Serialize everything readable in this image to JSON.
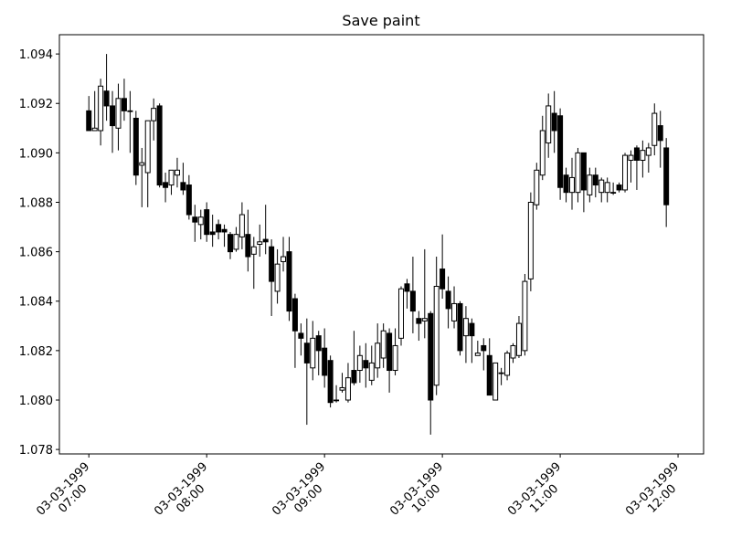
{
  "chart_data": {
    "type": "candlestick",
    "title": "Save paint",
    "x": [
      "1999-03-03 07:00",
      "1999-03-03 07:03",
      "1999-03-03 07:06",
      "1999-03-03 07:09",
      "1999-03-03 07:12",
      "1999-03-03 07:15",
      "1999-03-03 07:18",
      "1999-03-03 07:21",
      "1999-03-03 07:24",
      "1999-03-03 07:27",
      "1999-03-03 07:30",
      "1999-03-03 07:33",
      "1999-03-03 07:36",
      "1999-03-03 07:39",
      "1999-03-03 07:42",
      "1999-03-03 07:45",
      "1999-03-03 07:48",
      "1999-03-03 07:51",
      "1999-03-03 07:54",
      "1999-03-03 07:57",
      "1999-03-03 08:00",
      "1999-03-03 08:03",
      "1999-03-03 08:06",
      "1999-03-03 08:09",
      "1999-03-03 08:12",
      "1999-03-03 08:15",
      "1999-03-03 08:18",
      "1999-03-03 08:21",
      "1999-03-03 08:24",
      "1999-03-03 08:27",
      "1999-03-03 08:30",
      "1999-03-03 08:33",
      "1999-03-03 08:36",
      "1999-03-03 08:39",
      "1999-03-03 08:42",
      "1999-03-03 08:45",
      "1999-03-03 08:48",
      "1999-03-03 08:51",
      "1999-03-03 08:54",
      "1999-03-03 08:57",
      "1999-03-03 09:00",
      "1999-03-03 09:03",
      "1999-03-03 09:06",
      "1999-03-03 09:09",
      "1999-03-03 09:12",
      "1999-03-03 09:15",
      "1999-03-03 09:18",
      "1999-03-03 09:21",
      "1999-03-03 09:24",
      "1999-03-03 09:27",
      "1999-03-03 09:30",
      "1999-03-03 09:33",
      "1999-03-03 09:36",
      "1999-03-03 09:39",
      "1999-03-03 09:42",
      "1999-03-03 09:45",
      "1999-03-03 09:48",
      "1999-03-03 09:51",
      "1999-03-03 09:54",
      "1999-03-03 09:57",
      "1999-03-03 10:00",
      "1999-03-03 10:03",
      "1999-03-03 10:06",
      "1999-03-03 10:09",
      "1999-03-03 10:12",
      "1999-03-03 10:15",
      "1999-03-03 10:18",
      "1999-03-03 10:21",
      "1999-03-03 10:24",
      "1999-03-03 10:27",
      "1999-03-03 10:30",
      "1999-03-03 10:33",
      "1999-03-03 10:36",
      "1999-03-03 10:39",
      "1999-03-03 10:42",
      "1999-03-03 10:45",
      "1999-03-03 10:48",
      "1999-03-03 10:51",
      "1999-03-03 10:54",
      "1999-03-03 10:57",
      "1999-03-03 11:00",
      "1999-03-03 11:03",
      "1999-03-03 11:06",
      "1999-03-03 11:09",
      "1999-03-03 11:12",
      "1999-03-03 11:15",
      "1999-03-03 11:18",
      "1999-03-03 11:21",
      "1999-03-03 11:24",
      "1999-03-03 11:27",
      "1999-03-03 11:30",
      "1999-03-03 11:33",
      "1999-03-03 11:36",
      "1999-03-03 11:39",
      "1999-03-03 11:42",
      "1999-03-03 11:45",
      "1999-03-03 11:48",
      "1999-03-03 11:51",
      "1999-03-03 11:54"
    ],
    "open": [
      1.0917,
      1.0909,
      1.0909,
      1.0925,
      1.0919,
      1.091,
      1.0922,
      1.0917,
      1.0914,
      1.0895,
      1.0892,
      1.0913,
      1.0919,
      1.0888,
      1.0887,
      1.0891,
      1.0888,
      1.0887,
      1.0874,
      1.0871,
      1.0877,
      1.0868,
      1.0871,
      1.0869,
      1.0867,
      1.0861,
      1.0866,
      1.0867,
      1.0859,
      1.0863,
      1.0865,
      1.0862,
      1.0844,
      1.0856,
      1.086,
      1.0841,
      1.0827,
      1.0823,
      1.0813,
      1.0826,
      1.0821,
      1.0816,
      1.08,
      1.0804,
      1.08,
      1.0812,
      1.0812,
      1.0816,
      1.0808,
      1.0813,
      1.0817,
      1.0827,
      1.0812,
      1.0825,
      1.0847,
      1.0844,
      1.0833,
      1.0832,
      1.0835,
      1.0806,
      1.0853,
      1.0844,
      1.0832,
      1.0839,
      1.0826,
      1.0831,
      1.0818,
      1.0822,
      1.0818,
      1.08,
      1.0811,
      1.081,
      1.0817,
      1.0818,
      1.082,
      1.0849,
      1.0879,
      1.0891,
      1.0904,
      1.0916,
      1.0915,
      1.0891,
      1.0884,
      1.0884,
      1.09,
      1.0883,
      1.0891,
      1.0884,
      1.0884,
      1.0884,
      1.0887,
      1.0885,
      1.0897,
      1.0902,
      1.0897,
      1.0899,
      1.0903,
      1.0911,
      1.0902
    ],
    "high": [
      1.0923,
      1.0925,
      1.093,
      1.094,
      1.0925,
      1.0928,
      1.093,
      1.0925,
      1.0917,
      1.0902,
      1.0913,
      1.0922,
      1.092,
      1.0892,
      1.0893,
      1.0898,
      1.0896,
      1.0891,
      1.0879,
      1.0877,
      1.088,
      1.0875,
      1.0873,
      1.0871,
      1.0868,
      1.087,
      1.088,
      1.0877,
      1.0866,
      1.0871,
      1.0879,
      1.0865,
      1.0861,
      1.0866,
      1.0866,
      1.0843,
      1.0831,
      1.0833,
      1.0832,
      1.0828,
      1.0829,
      1.0818,
      1.0806,
      1.0811,
      1.0815,
      1.0828,
      1.0822,
      1.0823,
      1.0822,
      1.0831,
      1.0831,
      1.0829,
      1.0829,
      1.0846,
      1.0849,
      1.0858,
      1.0836,
      1.0861,
      1.0836,
      1.0858,
      1.0867,
      1.085,
      1.0846,
      1.084,
      1.0838,
      1.0833,
      1.0824,
      1.0825,
      1.0825,
      1.0815,
      1.0813,
      1.082,
      1.0823,
      1.0834,
      1.0851,
      1.0884,
      1.0896,
      1.0915,
      1.0924,
      1.0925,
      1.0918,
      1.0894,
      1.0898,
      1.0902,
      1.09,
      1.0894,
      1.0894,
      1.089,
      1.089,
      1.0888,
      1.0888,
      1.09,
      1.0901,
      1.0903,
      1.0905,
      1.0904,
      1.092,
      1.0917,
      1.0906
    ],
    "low": [
      1.0909,
      1.0909,
      1.0903,
      1.0913,
      1.09,
      1.0901,
      1.0913,
      1.09,
      1.0887,
      1.0878,
      1.0878,
      1.0905,
      1.0886,
      1.088,
      1.0883,
      1.0886,
      1.0883,
      1.0873,
      1.0864,
      1.0865,
      1.0864,
      1.0862,
      1.0865,
      1.0862,
      1.0857,
      1.086,
      1.0861,
      1.0852,
      1.0845,
      1.0858,
      1.0859,
      1.0834,
      1.0839,
      1.0852,
      1.0832,
      1.0813,
      1.0818,
      1.079,
      1.0808,
      1.081,
      1.0805,
      1.0797,
      1.0799,
      1.0803,
      1.0799,
      1.0806,
      1.0807,
      1.0805,
      1.0806,
      1.0809,
      1.0813,
      1.0803,
      1.081,
      1.0822,
      1.0837,
      1.0827,
      1.0824,
      1.0825,
      1.0786,
      1.0802,
      1.0841,
      1.0829,
      1.0829,
      1.0818,
      1.0815,
      1.0815,
      1.0818,
      1.0812,
      1.0802,
      1.08,
      1.0806,
      1.0808,
      1.0815,
      1.0817,
      1.0818,
      1.0844,
      1.0877,
      1.0889,
      1.0898,
      1.09,
      1.0881,
      1.088,
      1.0877,
      1.088,
      1.0876,
      1.088,
      1.0882,
      1.088,
      1.088,
      1.0883,
      1.0884,
      1.0884,
      1.0888,
      1.0885,
      1.089,
      1.0892,
      1.0899,
      1.0894,
      1.087
    ],
    "close": [
      1.0909,
      1.091,
      1.0927,
      1.0919,
      1.0911,
      1.0922,
      1.0917,
      1.0917,
      1.0891,
      1.0896,
      1.0913,
      1.0918,
      1.0887,
      1.0886,
      1.0893,
      1.0893,
      1.0885,
      1.0875,
      1.0872,
      1.0874,
      1.0867,
      1.0867,
      1.0868,
      1.0868,
      1.086,
      1.0867,
      1.0875,
      1.0858,
      1.0862,
      1.0864,
      1.0864,
      1.0848,
      1.0855,
      1.0858,
      1.0836,
      1.0828,
      1.0825,
      1.0815,
      1.0825,
      1.082,
      1.081,
      1.0799,
      1.08,
      1.0805,
      1.0809,
      1.0807,
      1.0818,
      1.0813,
      1.0815,
      1.0823,
      1.0828,
      1.0812,
      1.0822,
      1.0845,
      1.0844,
      1.0836,
      1.0831,
      1.0833,
      1.08,
      1.0846,
      1.0845,
      1.0837,
      1.0839,
      1.082,
      1.0833,
      1.0826,
      1.0819,
      1.082,
      1.0802,
      1.0815,
      1.0811,
      1.0819,
      1.0822,
      1.0831,
      1.0848,
      1.088,
      1.0893,
      1.0909,
      1.0919,
      1.0909,
      1.0886,
      1.0884,
      1.089,
      1.09,
      1.0885,
      1.0891,
      1.0887,
      1.0889,
      1.0888,
      1.0884,
      1.0885,
      1.0899,
      1.0899,
      1.0897,
      1.0901,
      1.0902,
      1.0916,
      1.0905,
      1.0879
    ],
    "up_color": "#ffffff",
    "down_color": "#000000",
    "edge_color": "#000000",
    "xlim": [
      "1999-03-03 06:45",
      "1999-03-03 12:13"
    ],
    "xticks": [
      {
        "value": "1999-03-03 07:00",
        "label": "03-03-1999\n07:00"
      },
      {
        "value": "1999-03-03 08:00",
        "label": "03-03-1999\n08:00"
      },
      {
        "value": "1999-03-03 09:00",
        "label": "03-03-1999\n09:00"
      },
      {
        "value": "1999-03-03 10:00",
        "label": "03-03-1999\n10:00"
      },
      {
        "value": "1999-03-03 11:00",
        "label": "03-03-1999\n11:00"
      },
      {
        "value": "1999-03-03 12:00",
        "label": "03-03-1999\n12:00"
      }
    ],
    "ylim": [
      1.07782,
      1.09478
    ],
    "yticks": [
      1.078,
      {
        "value": 1.08,
        "label": "1.080"
      },
      1.082,
      1.084,
      1.086,
      1.088,
      {
        "value": 1.09,
        "label": "1.090"
      },
      1.092,
      1.094
    ]
  }
}
